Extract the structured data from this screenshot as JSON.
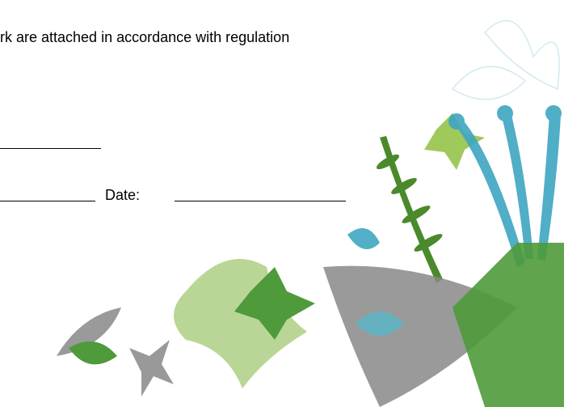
{
  "document": {
    "body_text": "rk are attached in accordance with regulation",
    "date_label": "Date:"
  }
}
